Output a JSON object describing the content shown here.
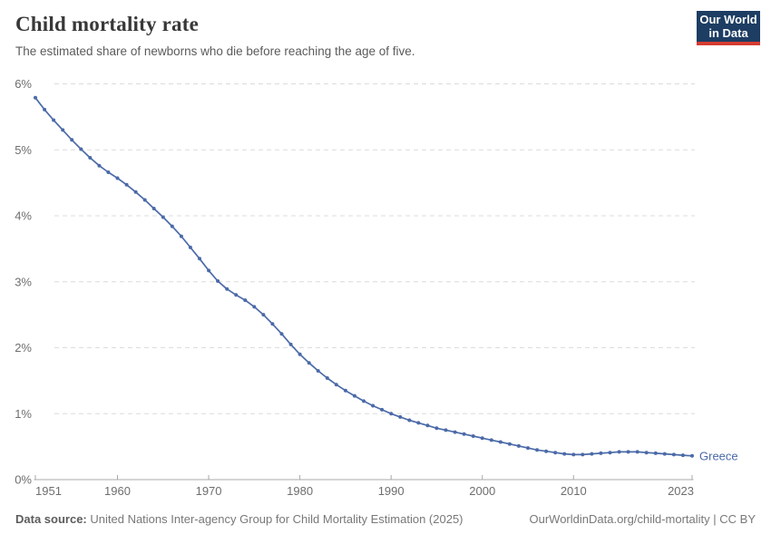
{
  "header": {
    "title": "Child mortality rate",
    "subtitle": "The estimated share of newborns who die before reaching the age of five."
  },
  "logo": {
    "line1": "Our World",
    "line2": "in Data",
    "bg_color": "#1d3d63",
    "accent_color": "#d53b32"
  },
  "chart_data": {
    "type": "line",
    "title": "Child mortality rate",
    "entity": "Greece",
    "unit": "%",
    "xlim": [
      1951,
      2023
    ],
    "ylim": [
      0,
      6
    ],
    "xticks": [
      1951,
      1960,
      1970,
      1980,
      1990,
      2000,
      2010,
      2023
    ],
    "yticks": [
      0,
      1,
      2,
      3,
      4,
      5,
      6
    ],
    "y_tick_suffix": "%",
    "grid": "horizontal-dashed",
    "legend_position": "end-of-line",
    "x": [
      1951,
      1952,
      1953,
      1954,
      1955,
      1956,
      1957,
      1958,
      1959,
      1960,
      1961,
      1962,
      1963,
      1964,
      1965,
      1966,
      1967,
      1968,
      1969,
      1970,
      1971,
      1972,
      1973,
      1974,
      1975,
      1976,
      1977,
      1978,
      1979,
      1980,
      1981,
      1982,
      1983,
      1984,
      1985,
      1986,
      1987,
      1988,
      1989,
      1990,
      1991,
      1992,
      1993,
      1994,
      1995,
      1996,
      1997,
      1998,
      1999,
      2000,
      2001,
      2002,
      2003,
      2004,
      2005,
      2006,
      2007,
      2008,
      2009,
      2010,
      2011,
      2012,
      2013,
      2014,
      2015,
      2016,
      2017,
      2018,
      2019,
      2020,
      2021,
      2022,
      2023
    ],
    "series": [
      {
        "name": "Greece",
        "color": "#4b6aa8",
        "values": [
          5.79,
          5.61,
          5.45,
          5.3,
          5.15,
          5.01,
          4.88,
          4.76,
          4.66,
          4.57,
          4.47,
          4.36,
          4.24,
          4.11,
          3.98,
          3.84,
          3.69,
          3.52,
          3.35,
          3.17,
          3.01,
          2.89,
          2.8,
          2.72,
          2.62,
          2.5,
          2.36,
          2.21,
          2.05,
          1.9,
          1.77,
          1.65,
          1.54,
          1.44,
          1.35,
          1.27,
          1.19,
          1.12,
          1.06,
          1.0,
          0.95,
          0.9,
          0.86,
          0.82,
          0.78,
          0.75,
          0.72,
          0.69,
          0.66,
          0.63,
          0.6,
          0.57,
          0.54,
          0.51,
          0.48,
          0.45,
          0.43,
          0.41,
          0.39,
          0.38,
          0.38,
          0.39,
          0.4,
          0.41,
          0.42,
          0.42,
          0.42,
          0.41,
          0.4,
          0.39,
          0.38,
          0.37,
          0.36
        ]
      }
    ]
  },
  "footer": {
    "datasource_label": "Data source:",
    "datasource_text": "United Nations Inter-agency Group for Child Mortality Estimation (2025)",
    "link_text": "OurWorldinData.org/child-mortality | CC BY"
  }
}
